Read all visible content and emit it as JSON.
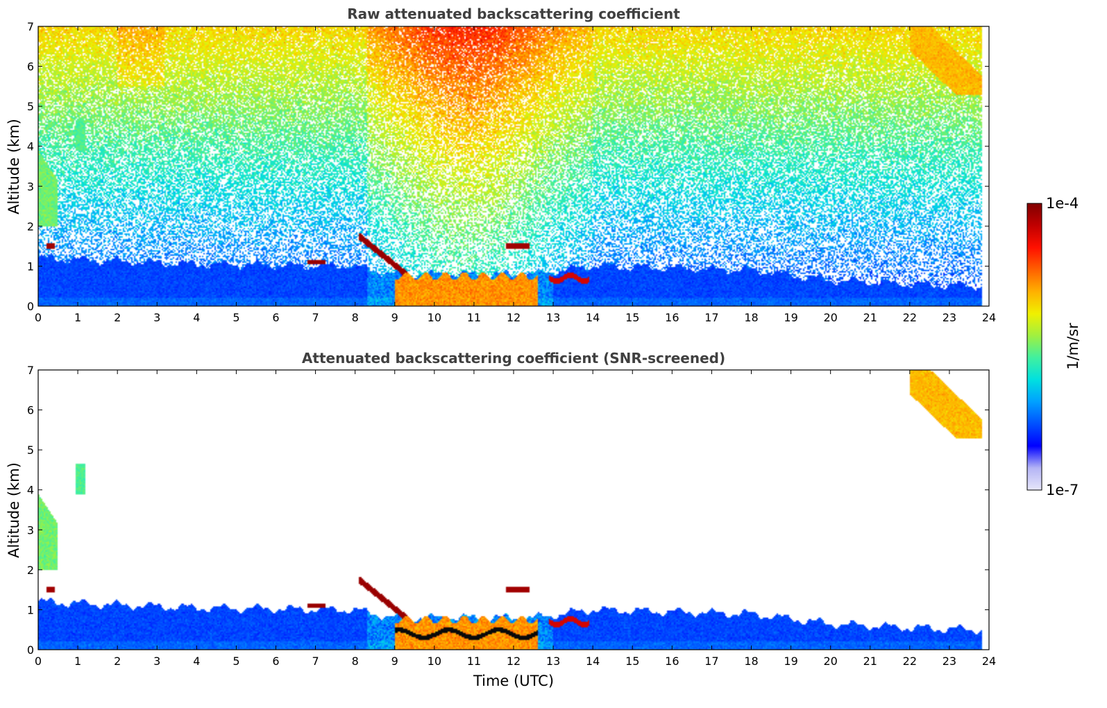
{
  "chart_data": [
    {
      "type": "heatmap",
      "title": "Raw attenuated backscattering coefficient",
      "xlabel": "",
      "ylabel": "Altitude (km)",
      "xlim": [
        0,
        24
      ],
      "ylim": [
        0,
        7
      ],
      "x_ticks": [
        "0",
        "1",
        "2",
        "3",
        "4",
        "5",
        "6",
        "7",
        "8",
        "9",
        "10",
        "11",
        "12",
        "13",
        "14",
        "15",
        "16",
        "17",
        "18",
        "19",
        "20",
        "21",
        "22",
        "23",
        "24"
      ],
      "y_ticks": [
        "0",
        "1",
        "2",
        "3",
        "4",
        "5",
        "6",
        "7"
      ],
      "screened": false,
      "features": [
        {
          "kind": "boundary_layer",
          "t_start": 0,
          "t_end": 23.8,
          "alt_top": [
            [
              0,
              1.2
            ],
            [
              4,
              1.05
            ],
            [
              8,
              1.0
            ],
            [
              9,
              0.8
            ],
            [
              12.5,
              0.8
            ],
            [
              14,
              1.0
            ],
            [
              18,
              0.9
            ],
            [
              20,
              0.65
            ],
            [
              22,
              0.55
            ],
            [
              23.8,
              0.5
            ]
          ]
        },
        {
          "kind": "fog_aerosol_layer",
          "t_start": 9.0,
          "t_end": 12.6,
          "alt_top": 0.7,
          "level": 0.75
        },
        {
          "kind": "cloud_base",
          "t_start": 8.1,
          "t_end": 9.4,
          "alt": [
            1.7,
            0.7
          ]
        },
        {
          "kind": "cloud_base",
          "t_start": 6.8,
          "t_end": 7.2,
          "alt": 1.1
        },
        {
          "kind": "cloud_base",
          "t_start": 11.8,
          "t_end": 12.4,
          "alt": 1.5
        },
        {
          "kind": "cloud_base",
          "t_start": 0.2,
          "t_end": 0.4,
          "alt": 1.5
        },
        {
          "kind": "cirrus",
          "t_start": 22.0,
          "t_end": 23.8,
          "alt": [
            7.0,
            5.3
          ]
        },
        {
          "kind": "aerosol_plume",
          "t_start": 0.0,
          "t_end": 0.5,
          "alt": [
            2.0,
            3.9
          ]
        },
        {
          "kind": "aerosol_plume",
          "t_start": 1.0,
          "t_end": 1.2,
          "alt": [
            3.9,
            4.6
          ]
        }
      ]
    },
    {
      "type": "heatmap",
      "title": "Attenuated backscattering coefficient (SNR-screened)",
      "xlabel": "Time (UTC)",
      "ylabel": "Altitude (km)",
      "xlim": [
        0,
        24
      ],
      "ylim": [
        0,
        7
      ],
      "x_ticks": [
        "0",
        "1",
        "2",
        "3",
        "4",
        "5",
        "6",
        "7",
        "8",
        "9",
        "10",
        "11",
        "12",
        "13",
        "14",
        "15",
        "16",
        "17",
        "18",
        "19",
        "20",
        "21",
        "22",
        "23",
        "24"
      ],
      "y_ticks": [
        "0",
        "1",
        "2",
        "3",
        "4",
        "5",
        "6",
        "7"
      ],
      "screened": true
    }
  ],
  "colorbar": {
    "label": "1/m/sr",
    "max_label": "1e-4",
    "min_label": "1e-7",
    "scale": "log",
    "colormap": "jet",
    "stops": [
      "#e6e6fa",
      "#b4b4f5",
      "#0000ff",
      "#0050ff",
      "#00a0ff",
      "#00e0e0",
      "#40f0a0",
      "#a0f040",
      "#f0f000",
      "#ffb000",
      "#ff6000",
      "#ff1000",
      "#c00000",
      "#800000"
    ]
  }
}
